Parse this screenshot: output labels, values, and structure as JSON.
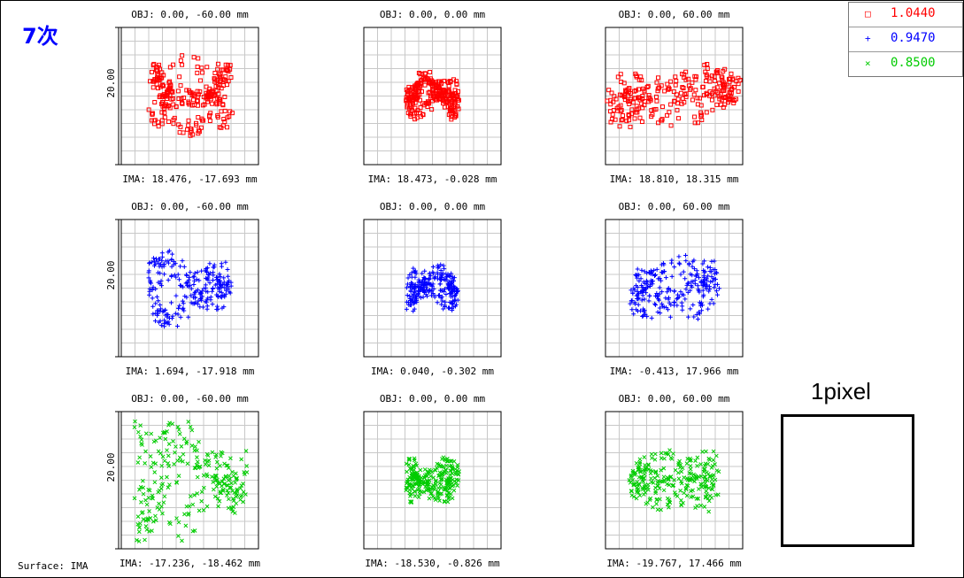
{
  "title": "7次",
  "surface_label": "Surface: IMA",
  "pixel_label": "1pixel",
  "scale_label": "20.00",
  "legend": [
    {
      "marker": "□",
      "value": "1.0440",
      "color": "#ff0000"
    },
    {
      "marker": "+",
      "value": "0.9470",
      "color": "#0000ff"
    },
    {
      "marker": "×",
      "value": "0.8500",
      "color": "#00cc00"
    }
  ],
  "chart_data": {
    "type": "scatter",
    "rows": [
      {
        "wavelength": "1.0440",
        "color": "#ff0000",
        "marker": "square",
        "plots": [
          {
            "obj": "OBJ: 0.00, -60.00 mm",
            "ima": "IMA: 18.476, -17.693 mm",
            "show_scale": true
          },
          {
            "obj": "OBJ: 0.00, 0.00 mm",
            "ima": "IMA: 18.473, -0.028 mm",
            "show_scale": false
          },
          {
            "obj": "OBJ: 0.00, 60.00 mm",
            "ima": "IMA: 18.810, 18.315 mm",
            "show_scale": false
          }
        ]
      },
      {
        "wavelength": "0.9470",
        "color": "#0000ff",
        "marker": "plus",
        "plots": [
          {
            "obj": "OBJ: 0.00, -60.00 mm",
            "ima": "IMA: 1.694, -17.918 mm",
            "show_scale": true
          },
          {
            "obj": "OBJ: 0.00, 0.00 mm",
            "ima": "IMA: 0.040, -0.302 mm",
            "show_scale": false
          },
          {
            "obj": "OBJ: 0.00, 60.00 mm",
            "ima": "IMA: -0.413, 17.966 mm",
            "show_scale": false
          }
        ]
      },
      {
        "wavelength": "0.8500",
        "color": "#00cc00",
        "marker": "cross",
        "plots": [
          {
            "obj": "OBJ: 0.00, -60.00 mm",
            "ima": "IMA: -17.236, -18.462 mm",
            "show_scale": true
          },
          {
            "obj": "OBJ: 0.00, 0.00 mm",
            "ima": "IMA: -18.530, -0.826 mm",
            "show_scale": false
          },
          {
            "obj": "OBJ: 0.00, 60.00 mm",
            "ima": "IMA: -19.767, 17.466 mm",
            "show_scale": false
          }
        ]
      }
    ]
  }
}
